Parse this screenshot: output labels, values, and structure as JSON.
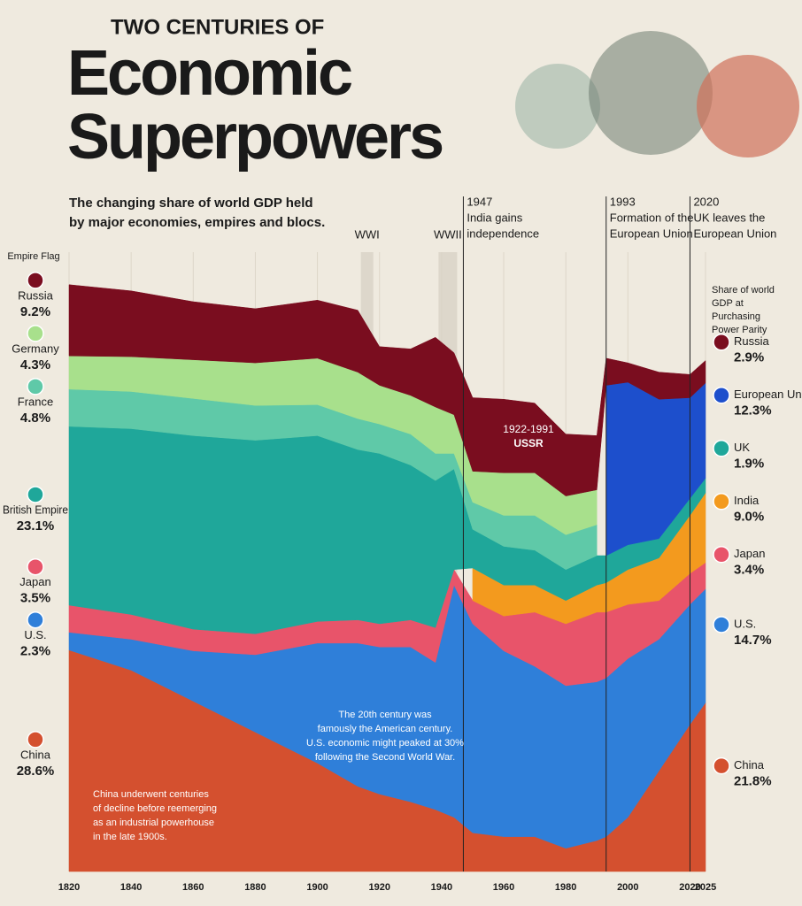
{
  "header": {
    "kicker": "TWO CENTURIES OF",
    "title": [
      "Economic",
      "Superpowers"
    ]
  },
  "chart_data": {
    "type": "stacked-area",
    "subtitle": [
      "The changing share of world GDP held",
      "by major economies, empires and blocs."
    ],
    "x": [
      1820,
      1840,
      1860,
      1880,
      1900,
      1913,
      1920,
      1930,
      1938,
      1944,
      1950,
      1960,
      1970,
      1980,
      1990,
      1993,
      2000,
      2010,
      2020,
      2025
    ],
    "xlim": [
      1820,
      2025
    ],
    "xticks": [
      1820,
      1840,
      1860,
      1880,
      1900,
      1920,
      1940,
      1960,
      1980,
      2000,
      2020,
      2025
    ],
    "ylim": [
      0,
      80
    ],
    "grid": true,
    "series": [
      {
        "name": "China",
        "color": "#d4502f",
        "values": [
          28.6,
          26,
          22,
          18,
          14,
          11,
          10,
          9,
          8,
          7,
          5,
          4.5,
          4.5,
          3,
          4,
          4.5,
          7,
          13,
          19,
          21.8
        ],
        "value_labels": [
          "28.6%",
          null,
          null,
          null,
          null,
          null,
          null,
          null,
          null,
          null,
          null,
          null,
          null,
          null,
          null,
          null,
          null,
          null,
          null,
          "21.8%"
        ]
      },
      {
        "name": "U.S.",
        "color": "#2f7fd9",
        "values": [
          2.3,
          4,
          6.5,
          10,
          15.5,
          18.5,
          19,
          20,
          19,
          30,
          27,
          24,
          22,
          21,
          20.5,
          20.5,
          20.5,
          17,
          15.5,
          14.7
        ],
        "value_labels": [
          "2.3%",
          null,
          null,
          null,
          null,
          null,
          null,
          null,
          null,
          null,
          null,
          null,
          null,
          null,
          null,
          null,
          null,
          null,
          null,
          "14.7%"
        ]
      },
      {
        "name": "Japan",
        "color": "#e8546a",
        "values": [
          3.5,
          3.2,
          2.8,
          2.7,
          2.8,
          3,
          3,
          3.5,
          4.5,
          2,
          3,
          4.5,
          7,
          8,
          9,
          8.5,
          7,
          5,
          4,
          3.4
        ],
        "value_labels": [
          "3.5%",
          null,
          null,
          null,
          null,
          null,
          null,
          null,
          null,
          null,
          null,
          null,
          null,
          null,
          null,
          null,
          null,
          null,
          null,
          "3.4%"
        ]
      },
      {
        "name": "India",
        "color": "#f39a1e",
        "values": [
          null,
          null,
          null,
          null,
          null,
          null,
          null,
          null,
          null,
          null,
          4.2,
          4,
          3.5,
          3,
          3.5,
          3.8,
          4.5,
          5.5,
          7.5,
          9.0
        ],
        "value_labels": [
          null,
          null,
          null,
          null,
          null,
          null,
          null,
          null,
          null,
          null,
          null,
          null,
          null,
          null,
          null,
          null,
          null,
          null,
          null,
          "9.0%"
        ]
      },
      {
        "name": "British Empire",
        "end_name": "UK",
        "color": "#1fa79a",
        "values": [
          23.1,
          24,
          25,
          25,
          24,
          22,
          22,
          20,
          19,
          13,
          5,
          5,
          4.5,
          4,
          3.8,
          3.5,
          3.2,
          2.5,
          2.2,
          1.9
        ],
        "value_labels": [
          "23.1%",
          null,
          null,
          null,
          null,
          null,
          null,
          null,
          null,
          null,
          null,
          null,
          null,
          null,
          null,
          null,
          null,
          null,
          null,
          "1.9%"
        ]
      },
      {
        "name": "France",
        "color": "#5fc9a8",
        "values": [
          4.8,
          4.8,
          4.8,
          4.5,
          4,
          4,
          3.8,
          4,
          3.5,
          2,
          3.5,
          4,
          4.5,
          4.5,
          4,
          null,
          null,
          null,
          null,
          null
        ],
        "value_labels": [
          "4.8%",
          null,
          null,
          null,
          null,
          null,
          null,
          null,
          null,
          null,
          null,
          null,
          null,
          null,
          null,
          null,
          null,
          null,
          null,
          null
        ]
      },
      {
        "name": "Germany",
        "color": "#a8e08c",
        "values": [
          4.3,
          4.5,
          5,
          5.5,
          6,
          6,
          5,
          5,
          6,
          5,
          4,
          5.5,
          5.5,
          5,
          4.5,
          null,
          null,
          null,
          null,
          null
        ],
        "value_labels": [
          "4.3%",
          null,
          null,
          null,
          null,
          null,
          null,
          null,
          null,
          null,
          null,
          null,
          null,
          null,
          null,
          null,
          null,
          null,
          null,
          null
        ]
      },
      {
        "name": "European Union",
        "color": "#1d4fcc",
        "values": [
          null,
          null,
          null,
          null,
          null,
          null,
          null,
          null,
          null,
          null,
          null,
          null,
          null,
          null,
          null,
          22,
          21,
          18,
          13,
          12.3
        ],
        "value_labels": [
          null,
          null,
          null,
          null,
          null,
          null,
          null,
          null,
          null,
          null,
          null,
          null,
          null,
          null,
          null,
          null,
          null,
          null,
          null,
          "12.3%"
        ]
      },
      {
        "name": "Russia",
        "color": "#7a0d1f",
        "values": [
          9.2,
          8.5,
          7.5,
          7,
          7.5,
          8,
          5,
          6,
          9,
          8,
          9.5,
          9.5,
          9,
          8,
          7,
          3.5,
          2.5,
          3.5,
          3,
          2.9
        ],
        "value_labels": [
          "9.2%",
          null,
          null,
          null,
          null,
          null,
          null,
          null,
          null,
          null,
          null,
          null,
          null,
          null,
          null,
          null,
          null,
          null,
          null,
          "2.9%"
        ]
      }
    ],
    "events": [
      {
        "label": "WWI",
        "range": [
          1914,
          1918
        ]
      },
      {
        "label": "WWII",
        "range": [
          1939,
          1945
        ]
      }
    ],
    "milestones": [
      {
        "year": 1947,
        "lines": [
          "India gains",
          "independence"
        ]
      },
      {
        "year": 1993,
        "lines": [
          "Formation of the",
          "European Union"
        ]
      },
      {
        "year": 2020,
        "lines": [
          "UK leaves the",
          "European Union"
        ]
      }
    ],
    "left_header": "Empire Flag",
    "right_header": [
      "Share of world",
      "GDP at",
      "Purchasing",
      "Power Parity"
    ],
    "annotations": [
      {
        "lines": [
          "1922-1991",
          "USSR"
        ]
      },
      {
        "lines": [
          "The 20th century was",
          "famously the American century.",
          "U.S. economic might peaked at 30%",
          "following the Second World War."
        ]
      },
      {
        "lines": [
          "China underwent centuries",
          "of decline before reemerging",
          "as an industrial powerhouse",
          "in the late 1900s."
        ]
      }
    ]
  }
}
